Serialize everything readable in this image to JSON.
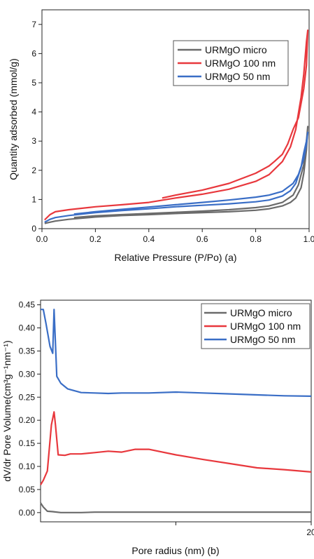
{
  "chart_data": [
    {
      "type": "line",
      "xlabel": "Relative Pressure (P/Po) (a)",
      "ylabel": "Quantity adsorbed (mmol/g)",
      "xlim": [
        0.0,
        1.0
      ],
      "ylim": [
        0,
        7.5
      ],
      "xticks": [
        "0.0",
        "0.2",
        "0.4",
        "0.6",
        "0.8",
        "1.0"
      ],
      "yticks": [
        "0",
        "1",
        "2",
        "3",
        "4",
        "5",
        "6",
        "7"
      ],
      "grid": false,
      "legend_position": "top-right",
      "series": [
        {
          "name": "URMgO micro",
          "color": "#6b6b6b",
          "x": [
            0.01,
            0.03,
            0.05,
            0.1,
            0.2,
            0.3,
            0.4,
            0.5,
            0.6,
            0.7,
            0.8,
            0.85,
            0.9,
            0.93,
            0.95,
            0.97,
            0.98,
            0.99,
            0.995,
            0.99,
            0.98,
            0.96,
            0.94,
            0.9,
            0.85,
            0.8,
            0.7,
            0.6,
            0.5,
            0.4,
            0.3,
            0.2,
            0.12
          ],
          "y": [
            0.18,
            0.22,
            0.26,
            0.32,
            0.4,
            0.45,
            0.48,
            0.52,
            0.55,
            0.58,
            0.63,
            0.68,
            0.78,
            0.9,
            1.05,
            1.4,
            1.9,
            2.7,
            3.5,
            3.0,
            2.2,
            1.5,
            1.15,
            0.9,
            0.78,
            0.72,
            0.65,
            0.6,
            0.56,
            0.52,
            0.48,
            0.44,
            0.38
          ]
        },
        {
          "name": "URMgO 100 nm",
          "color": "#e8383d",
          "x": [
            0.01,
            0.03,
            0.05,
            0.1,
            0.2,
            0.3,
            0.4,
            0.5,
            0.6,
            0.7,
            0.8,
            0.85,
            0.9,
            0.93,
            0.95,
            0.97,
            0.98,
            0.99,
            0.995,
            0.99,
            0.98,
            0.96,
            0.94,
            0.92,
            0.9,
            0.87,
            0.85,
            0.8,
            0.7,
            0.6,
            0.5,
            0.45
          ],
          "y": [
            0.3,
            0.48,
            0.58,
            0.65,
            0.75,
            0.82,
            0.9,
            1.05,
            1.18,
            1.35,
            1.62,
            1.85,
            2.3,
            2.8,
            3.4,
            4.5,
            5.3,
            6.4,
            6.8,
            5.6,
            4.8,
            3.8,
            3.4,
            2.9,
            2.55,
            2.3,
            2.15,
            1.9,
            1.55,
            1.32,
            1.15,
            1.05
          ]
        },
        {
          "name": "URMgO 50 nm",
          "color": "#3a6ec6",
          "x": [
            0.01,
            0.03,
            0.05,
            0.1,
            0.2,
            0.3,
            0.4,
            0.5,
            0.6,
            0.7,
            0.8,
            0.85,
            0.9,
            0.93,
            0.95,
            0.97,
            0.98,
            0.99,
            0.995,
            0.99,
            0.98,
            0.96,
            0.94,
            0.9,
            0.85,
            0.8,
            0.7,
            0.6,
            0.5,
            0.4,
            0.3,
            0.2,
            0.12
          ],
          "y": [
            0.22,
            0.32,
            0.38,
            0.45,
            0.55,
            0.62,
            0.68,
            0.75,
            0.8,
            0.85,
            0.92,
            0.98,
            1.12,
            1.3,
            1.55,
            2.1,
            2.6,
            3.0,
            3.3,
            2.9,
            2.4,
            1.85,
            1.55,
            1.28,
            1.15,
            1.08,
            0.98,
            0.9,
            0.82,
            0.74,
            0.66,
            0.58,
            0.5
          ]
        }
      ]
    },
    {
      "type": "line",
      "xlabel": "Pore radius (nm) (b)",
      "ylabel": "dV/dr Pore Volume(cm³g⁻¹nm⁻¹)",
      "xlim": [
        0,
        20
      ],
      "ylim": [
        -0.02,
        0.46
      ],
      "xticks": [
        "20"
      ],
      "yticks": [
        "0.00",
        "0.05",
        "0.10",
        "0.15",
        "0.20",
        "0.25",
        "0.30",
        "0.35",
        "0.40",
        "0.45"
      ],
      "grid": false,
      "legend_position": "top-right",
      "series": [
        {
          "name": "URMgO micro",
          "color": "#6b6b6b",
          "x": [
            0,
            0.2,
            0.5,
            0.9,
            1.5,
            2.0,
            3.0,
            4.0,
            5.0,
            6.0,
            8.0,
            10.0,
            12.0,
            14.0,
            16.0,
            18.0,
            20.0
          ],
          "y": [
            0.021,
            0.012,
            0.003,
            0.002,
            0.0,
            0.0,
            0.0,
            0.001,
            0.001,
            0.001,
            0.001,
            0.001,
            0.001,
            0.001,
            0.001,
            0.001,
            0.001
          ]
        },
        {
          "name": "URMgO 100 nm",
          "color": "#e8383d",
          "x": [
            0,
            0.2,
            0.5,
            0.8,
            1.0,
            1.1,
            1.3,
            1.8,
            2.2,
            3.0,
            4.0,
            5.0,
            6.0,
            7.0,
            8.0,
            10.0,
            12.0,
            14.0,
            16.0,
            18.0,
            20.0
          ],
          "y": [
            0.06,
            0.07,
            0.09,
            0.19,
            0.218,
            0.19,
            0.125,
            0.124,
            0.127,
            0.127,
            0.13,
            0.133,
            0.131,
            0.137,
            0.137,
            0.125,
            0.115,
            0.106,
            0.097,
            0.093,
            0.088
          ]
        },
        {
          "name": "URMgO 50 nm",
          "color": "#3a6ec6",
          "x": [
            0,
            0.2,
            0.4,
            0.7,
            0.9,
            1.0,
            1.2,
            1.5,
            2.0,
            3.0,
            4.0,
            5.0,
            6.0,
            8.0,
            10.0,
            12.0,
            14.0,
            16.0,
            18.0,
            20.0
          ],
          "y": [
            0.44,
            0.44,
            0.41,
            0.36,
            0.345,
            0.44,
            0.295,
            0.28,
            0.268,
            0.26,
            0.259,
            0.258,
            0.259,
            0.259,
            0.261,
            0.259,
            0.257,
            0.255,
            0.253,
            0.252
          ]
        }
      ]
    }
  ]
}
